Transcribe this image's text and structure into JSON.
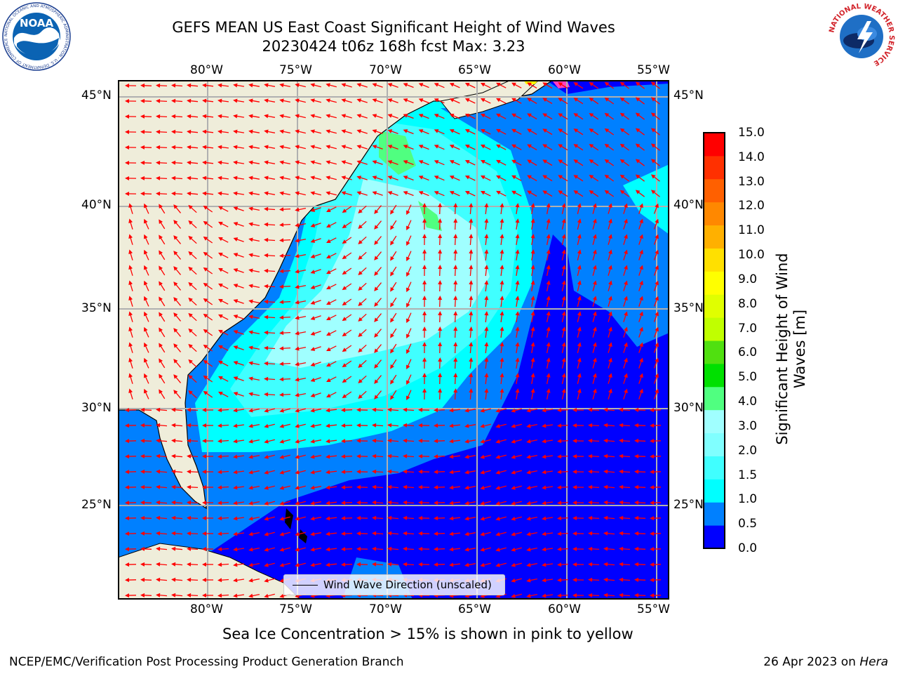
{
  "title": {
    "line1": "GEFS MEAN US East Coast Significant Height of Wind Waves",
    "line2": "20230424 t06z 168h fcst   Max: 3.23"
  },
  "logos": {
    "noaa_text": "NOAA",
    "noaa_ring": "NATIONAL OCEANIC AND ATMOSPHERIC ADMINISTRATION · U.S. DEPARTMENT OF COMMERCE",
    "nws_ring": "NATIONAL WEATHER SERVICE"
  },
  "axes": {
    "lon_ticks": [
      "80°W",
      "75°W",
      "70°W",
      "65°W",
      "60°W",
      "55°W"
    ],
    "lat_ticks": [
      "45°N",
      "40°N",
      "35°N",
      "30°N",
      "25°N"
    ]
  },
  "legend": {
    "label": "Wind Wave Direction (unscaled)"
  },
  "colorbar": {
    "label": "Significant Height of Wind Waves [m]",
    "label_line1": "Significant Height of Wind",
    "label_line2": "Waves [m]",
    "ticks": [
      "15.0",
      "14.0",
      "13.0",
      "12.0",
      "11.0",
      "10.0",
      "9.0",
      "8.0",
      "7.0",
      "6.0",
      "5.0",
      "4.0",
      "3.0",
      "2.0",
      "1.5",
      "1.0",
      "0.5",
      "0.0"
    ],
    "colors": [
      "#0000ff",
      "#0080ff",
      "#00ffff",
      "#40ffff",
      "#80ffff",
      "#a0ffff",
      "#50ff80",
      "#00e000",
      "#50e010",
      "#c0ff00",
      "#e0ff00",
      "#ffff00",
      "#ffe000",
      "#ffb000",
      "#ff8800",
      "#ff6000",
      "#ff3000",
      "#ff0000"
    ],
    "arrow_color": "#ff0000",
    "land_color": "#efedda"
  },
  "note": "Sea Ice Concentration > 15% is shown in pink to yellow",
  "footer": {
    "left": "NCEP/EMC/Verification Post Processing Product Generation Branch",
    "date": "26 Apr 2023 on",
    "machine": "Hera"
  }
}
